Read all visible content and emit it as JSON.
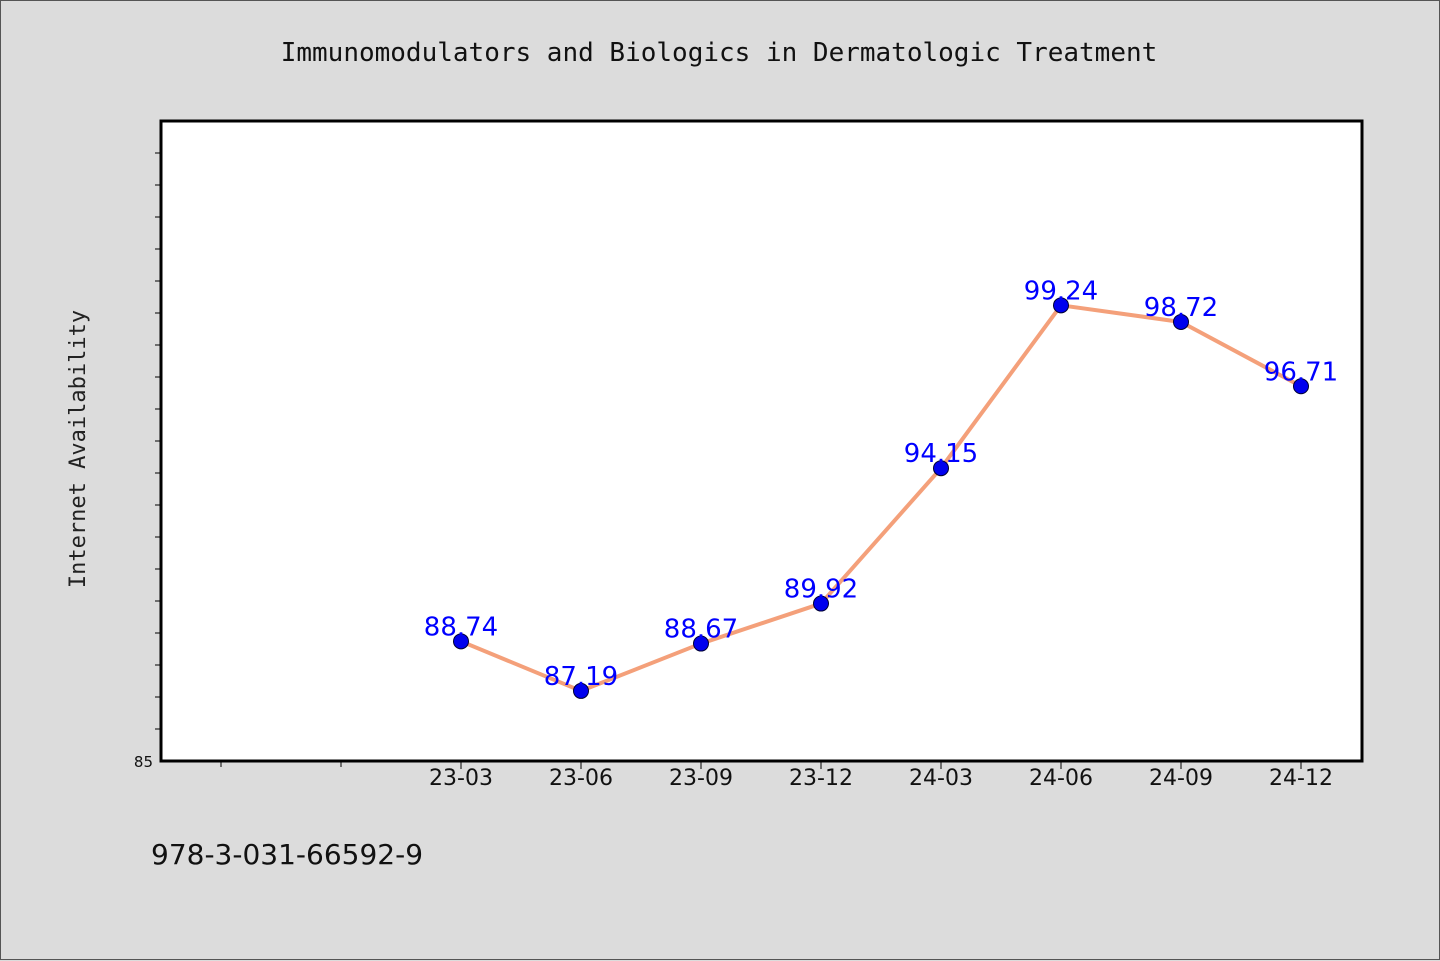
{
  "chart_data": {
    "type": "line",
    "title": "Immunomodulators and Biologics in Dermatologic Treatment",
    "xlabel": "",
    "ylabel": "Internet Availability",
    "categories": [
      "23-03",
      "23-06",
      "23-09",
      "23-12",
      "24-03",
      "24-06",
      "24-09",
      "24-12"
    ],
    "series": [
      {
        "values": [
          88.74,
          87.19,
          88.67,
          89.92,
          94.15,
          99.24,
          98.72,
          96.71
        ],
        "data_labels": [
          "88.74",
          "87.19",
          "88.67",
          "89.92",
          "94.15",
          "99.24",
          "98.72",
          "96.71"
        ],
        "line_color": "#f4a07a",
        "marker_color": "#0000ee"
      }
    ],
    "ylim": [
      85,
      105
    ],
    "y_tick_labels": [
      "85"
    ],
    "grid": false,
    "legend": "none"
  },
  "footer": {
    "isbn": "978-3-031-66592-9"
  }
}
